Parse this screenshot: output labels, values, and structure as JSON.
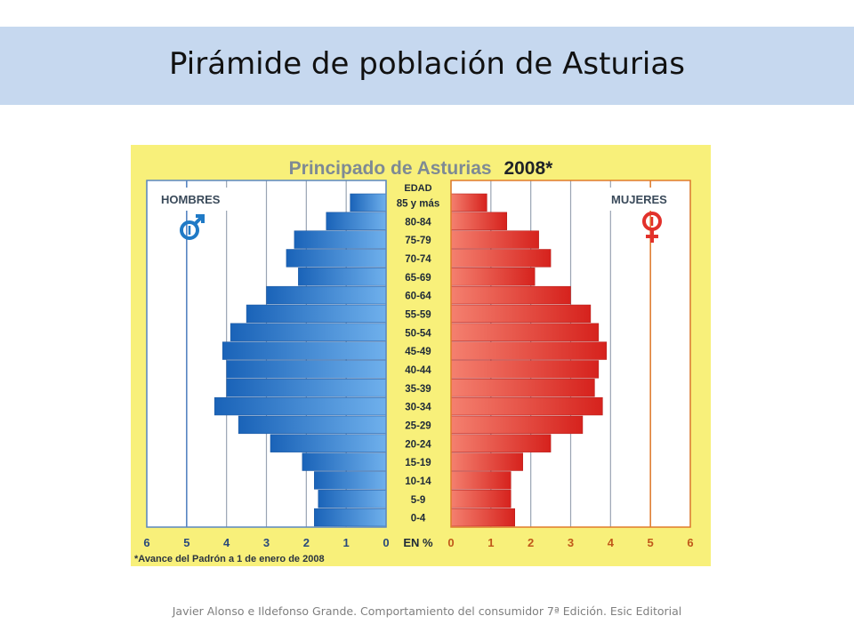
{
  "slide": {
    "title": "Pirámide de población de Asturias",
    "footer": "Javier Alonso e Ildefonso Grande. Comportamiento del consumidor 7ª Edición. Esic Editorial"
  },
  "chart_data": {
    "type": "bar",
    "orientation": "horizontal-population-pyramid",
    "title_main": "Principado de Asturias",
    "title_year": "2008*",
    "note": "*Avance del Padrón a 1 de enero de 2008",
    "age_header": "EDAD",
    "unit_label": "EN %",
    "legend": {
      "men": "HOMBRES",
      "women": "MUJERES"
    },
    "categories": [
      "85 y más",
      "80-84",
      "75-79",
      "70-74",
      "65-69",
      "60-64",
      "55-59",
      "50-54",
      "45-49",
      "40-44",
      "35-39",
      "30-34",
      "25-29",
      "20-24",
      "15-19",
      "10-14",
      "5-9",
      "0-4"
    ],
    "series": [
      {
        "name": "HOMBRES",
        "values": [
          0.9,
          1.5,
          2.3,
          2.5,
          2.2,
          3.0,
          3.5,
          3.9,
          4.1,
          4.0,
          4.0,
          4.3,
          3.7,
          2.9,
          2.1,
          1.8,
          1.7,
          1.8
        ]
      },
      {
        "name": "MUJERES",
        "values": [
          0.9,
          1.4,
          2.2,
          2.5,
          2.1,
          3.0,
          3.5,
          3.7,
          3.9,
          3.7,
          3.6,
          3.8,
          3.3,
          2.5,
          1.8,
          1.5,
          1.5,
          1.6
        ]
      }
    ],
    "men_ticks": [
      "6",
      "5",
      "4",
      "3",
      "2",
      "1",
      "0"
    ],
    "women_ticks": [
      "0",
      "1",
      "2",
      "3",
      "4",
      "5",
      "6"
    ],
    "xlim": [
      0,
      6
    ],
    "colors": {
      "men": "#2f82d0",
      "women": "#ef4336",
      "men_axis": "#5b87bf",
      "women_axis": "#e07a2a",
      "background": "#f8f07a",
      "title": "#7e8a94"
    }
  }
}
